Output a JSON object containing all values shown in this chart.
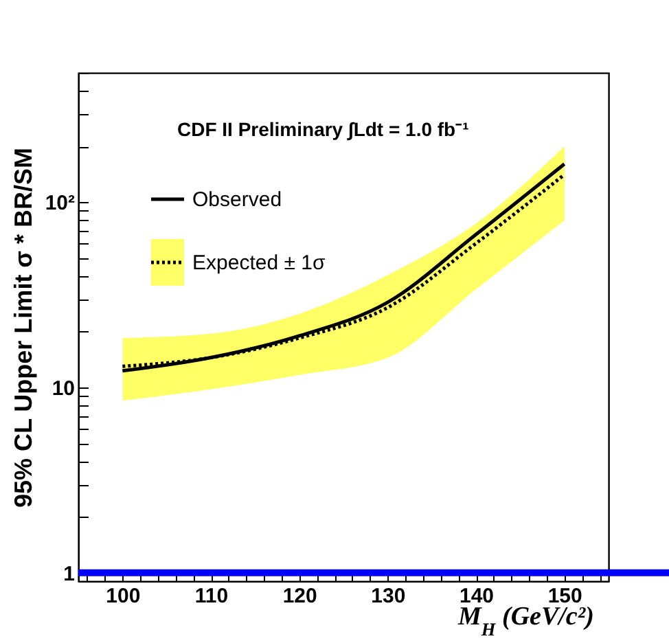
{
  "chart_data": {
    "type": "line",
    "annotations": [
      "CDF II Preliminary ∫Ldt = 1.0 fb⁻¹"
    ],
    "xlabel": "M$_{H}$ (GeV/c²)",
    "ylabel": "95% CL Upper Limit σ * BR/SM",
    "x": [
      100,
      110,
      120,
      130,
      140,
      150
    ],
    "series": [
      {
        "name": "Observed",
        "color": "#000000",
        "line_style": "solid",
        "values": [
          12.3,
          14.5,
          19,
          28.8,
          67,
          161
        ]
      },
      {
        "name": "Expected ± 1σ",
        "color": "#000000",
        "line_style": "dotted",
        "values": [
          13,
          14.5,
          18.5,
          27,
          60,
          141
        ],
        "lower": [
          8.5,
          9.8,
          11.7,
          14.5,
          34,
          80
        ],
        "upper": [
          18.5,
          19.5,
          25,
          40.5,
          77,
          201
        ]
      }
    ],
    "xlim": [
      95,
      155
    ],
    "ylim": [
      0.9,
      500
    ],
    "log": "y",
    "grid": false,
    "legend": "top left",
    "xticks": [
      {
        "value": 96,
        "label": null
      },
      {
        "value": 98,
        "label": null
      },
      100,
      {
        "value": 102,
        "label": null
      },
      {
        "value": 104,
        "label": null
      },
      {
        "value": 106,
        "label": null
      },
      {
        "value": 108,
        "label": null
      },
      110,
      {
        "value": 112,
        "label": null
      },
      {
        "value": 114,
        "label": null
      },
      {
        "value": 116,
        "label": null
      },
      {
        "value": 118,
        "label": null
      },
      120,
      {
        "value": 122,
        "label": null
      },
      {
        "value": 124,
        "label": null
      },
      {
        "value": 126,
        "label": null
      },
      {
        "value": 128,
        "label": null
      },
      130,
      {
        "value": 132,
        "label": null
      },
      {
        "value": 134,
        "label": null
      },
      {
        "value": 136,
        "label": null
      },
      {
        "value": 138,
        "label": null
      },
      140,
      {
        "value": 142,
        "label": null
      },
      {
        "value": 144,
        "label": null
      },
      {
        "value": 146,
        "label": null
      },
      {
        "value": 148,
        "label": null
      },
      150,
      {
        "value": 152,
        "label": null
      },
      {
        "value": 154,
        "label": null
      }
    ],
    "yticks": [
      1,
      {
        "value": 2,
        "label": null
      },
      {
        "value": 3,
        "label": null
      },
      {
        "value": 4,
        "label": null
      },
      {
        "value": 5,
        "label": null
      },
      {
        "value": 6,
        "label": null
      },
      {
        "value": 7,
        "label": null
      },
      {
        "value": 8,
        "label": null
      },
      {
        "value": 9,
        "label": null
      },
      10,
      {
        "value": 20,
        "label": null
      },
      {
        "value": 30,
        "label": null
      },
      {
        "value": 40,
        "label": null
      },
      {
        "value": 50,
        "label": null
      },
      {
        "value": 60,
        "label": null
      },
      {
        "value": 70,
        "label": null
      },
      {
        "value": 80,
        "label": null
      },
      {
        "value": 90,
        "label": null
      },
      {
        "value": 100,
        "label": "10²"
      },
      {
        "value": 200,
        "label": null
      },
      {
        "value": 300,
        "label": null
      },
      {
        "value": 400,
        "label": null
      },
      {
        "value": 500,
        "label": null
      }
    ],
    "ref_lines": [
      {
        "axis": "y",
        "value": 1,
        "color": "#0000ff"
      }
    ]
  }
}
